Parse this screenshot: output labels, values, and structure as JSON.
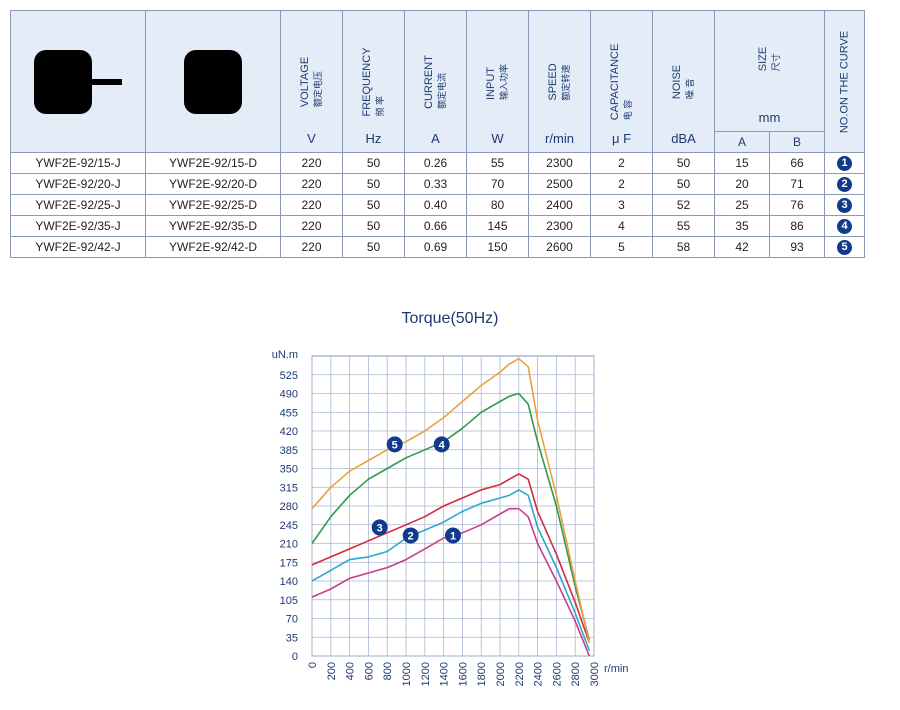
{
  "table": {
    "headers": [
      {
        "key": "voltage",
        "en": "VOLTAGE",
        "cn": "额定电压",
        "unit": "V"
      },
      {
        "key": "frequency",
        "en": "FREQUENCY",
        "cn": "频 率",
        "unit": "Hz"
      },
      {
        "key": "current",
        "en": "CURRENT",
        "cn": "额定电流",
        "unit": "A"
      },
      {
        "key": "input",
        "en": "INPUT",
        "cn": "输入功率",
        "unit": "W"
      },
      {
        "key": "speed",
        "en": "SPEED",
        "cn": "额定转速",
        "unit": "r/min"
      },
      {
        "key": "capacitance",
        "en": "CAPACITANCE",
        "cn": "电 容",
        "unit": "μ F"
      },
      {
        "key": "noise",
        "en": "NOISE",
        "cn": "噪 音",
        "unit": "dBA"
      }
    ],
    "size": {
      "en": "SIZE",
      "cn": "尺寸",
      "unit": "mm",
      "a": "A",
      "b": "B"
    },
    "curve_header": "NO.ON THE CURVE",
    "rows": [
      {
        "model_j": "YWF2E-92/15-J",
        "model_d": "YWF2E-92/15-D",
        "voltage": "220",
        "frequency": "50",
        "current": "0.26",
        "input": "55",
        "speed": "2300",
        "capacitance": "2",
        "noise": "50",
        "a": "15",
        "b": "66",
        "curve": "1"
      },
      {
        "model_j": "YWF2E-92/20-J",
        "model_d": "YWF2E-92/20-D",
        "voltage": "220",
        "frequency": "50",
        "current": "0.33",
        "input": "70",
        "speed": "2500",
        "capacitance": "2",
        "noise": "50",
        "a": "20",
        "b": "71",
        "curve": "2"
      },
      {
        "model_j": "YWF2E-92/25-J",
        "model_d": "YWF2E-92/25-D",
        "voltage": "220",
        "frequency": "50",
        "current": "0.40",
        "input": "80",
        "speed": "2400",
        "capacitance": "3",
        "noise": "52",
        "a": "25",
        "b": "76",
        "curve": "3"
      },
      {
        "model_j": "YWF2E-92/35-J",
        "model_d": "YWF2E-92/35-D",
        "voltage": "220",
        "frequency": "50",
        "current": "0.66",
        "input": "145",
        "speed": "2300",
        "capacitance": "4",
        "noise": "55",
        "a": "35",
        "b": "86",
        "curve": "4"
      },
      {
        "model_j": "YWF2E-92/42-J",
        "model_d": "YWF2E-92/42-D",
        "voltage": "220",
        "frequency": "50",
        "current": "0.69",
        "input": "150",
        "speed": "2600",
        "capacitance": "5",
        "noise": "58",
        "a": "42",
        "b": "93",
        "curve": "5"
      }
    ]
  },
  "chart_data": {
    "type": "line",
    "title": "Torque(50Hz)",
    "xlabel": "r/min",
    "ylabel": "uN.m",
    "xlim": [
      0,
      3000
    ],
    "ylim": [
      0,
      560
    ],
    "x_ticks": [
      0,
      200,
      400,
      600,
      800,
      1000,
      1200,
      1400,
      1600,
      1800,
      2000,
      2200,
      2400,
      2600,
      2800,
      3000
    ],
    "y_ticks": [
      0,
      35,
      70,
      105,
      140,
      175,
      210,
      245,
      280,
      315,
      350,
      385,
      420,
      455,
      490,
      525
    ],
    "grid": true,
    "series": [
      {
        "name": "1",
        "color": "#c93d8c",
        "x": [
          0,
          200,
          400,
          600,
          800,
          1000,
          1200,
          1400,
          1600,
          1800,
          2000,
          2100,
          2200,
          2300,
          2400,
          2600,
          2800,
          2950
        ],
        "y": [
          110,
          125,
          145,
          155,
          165,
          180,
          200,
          220,
          230,
          245,
          265,
          275,
          275,
          260,
          210,
          140,
          65,
          0
        ]
      },
      {
        "name": "2",
        "color": "#2fa6cf",
        "x": [
          0,
          200,
          400,
          600,
          800,
          1000,
          1200,
          1400,
          1600,
          1800,
          2000,
          2100,
          2200,
          2300,
          2400,
          2600,
          2800,
          2950
        ],
        "y": [
          140,
          160,
          180,
          185,
          195,
          220,
          235,
          250,
          270,
          285,
          295,
          300,
          310,
          300,
          240,
          165,
          80,
          10
        ]
      },
      {
        "name": "3",
        "color": "#d42a3c",
        "x": [
          0,
          200,
          400,
          600,
          800,
          1000,
          1200,
          1400,
          1600,
          1800,
          2000,
          2100,
          2200,
          2300,
          2400,
          2600,
          2800,
          2950
        ],
        "y": [
          170,
          185,
          200,
          215,
          230,
          245,
          260,
          280,
          295,
          310,
          320,
          330,
          340,
          330,
          270,
          190,
          100,
          25
        ]
      },
      {
        "name": "4",
        "color": "#2f9a4a",
        "x": [
          0,
          200,
          400,
          600,
          800,
          1000,
          1200,
          1400,
          1600,
          1800,
          2000,
          2100,
          2200,
          2300,
          2400,
          2600,
          2800,
          2950
        ],
        "y": [
          210,
          260,
          300,
          330,
          350,
          370,
          385,
          400,
          425,
          455,
          475,
          485,
          490,
          470,
          400,
          280,
          130,
          30
        ]
      },
      {
        "name": "5",
        "color": "#eba13d",
        "x": [
          0,
          200,
          400,
          600,
          800,
          1000,
          1200,
          1400,
          1600,
          1800,
          2000,
          2100,
          2200,
          2300,
          2400,
          2600,
          2800,
          2950
        ],
        "y": [
          275,
          315,
          345,
          365,
          385,
          400,
          420,
          445,
          475,
          505,
          530,
          545,
          555,
          540,
          440,
          300,
          140,
          25
        ]
      }
    ],
    "labels": [
      {
        "text": "1",
        "x": 1500,
        "y": 225
      },
      {
        "text": "2",
        "x": 1050,
        "y": 225
      },
      {
        "text": "3",
        "x": 720,
        "y": 240
      },
      {
        "text": "4",
        "x": 1380,
        "y": 395
      },
      {
        "text": "5",
        "x": 880,
        "y": 395
      }
    ]
  }
}
